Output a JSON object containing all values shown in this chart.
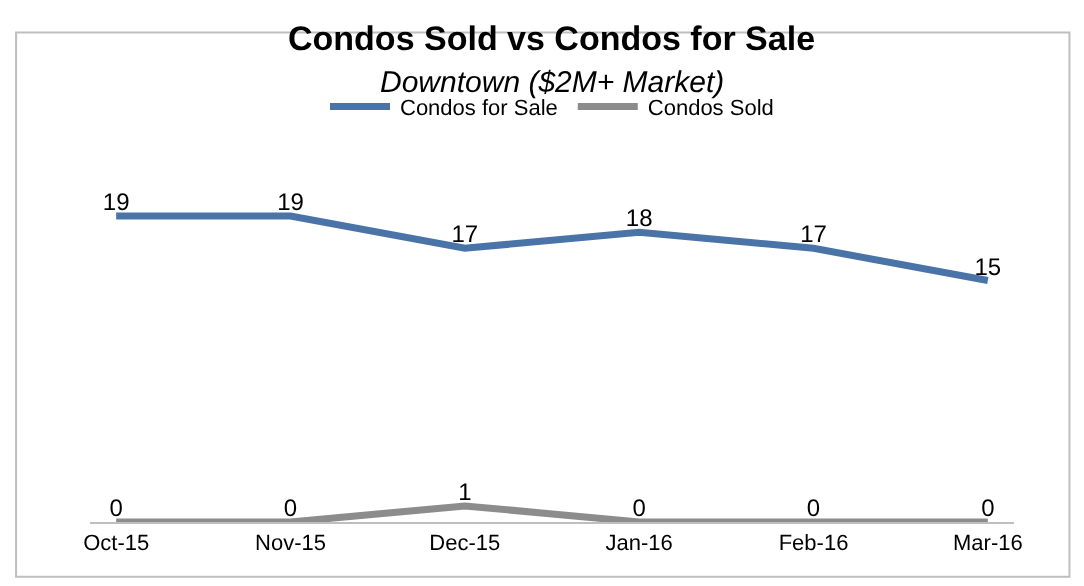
{
  "chart_data": {
    "type": "line",
    "title": "Condos Sold vs Condos for Sale",
    "subtitle": "Downtown ($2M+ Market)",
    "categories": [
      "Oct-15",
      "Nov-15",
      "Dec-15",
      "Jan-16",
      "Feb-16",
      "Mar-16"
    ],
    "series": [
      {
        "name": "Condos for Sale",
        "color": "#4a74a8",
        "values": [
          19,
          19,
          17,
          18,
          17,
          15
        ]
      },
      {
        "name": "Condos Sold",
        "color": "#8c8c8c",
        "values": [
          0,
          0,
          1,
          0,
          0,
          0
        ]
      }
    ],
    "data_labels": true,
    "legend": "top",
    "marker": "none",
    "line_style": "solid"
  }
}
